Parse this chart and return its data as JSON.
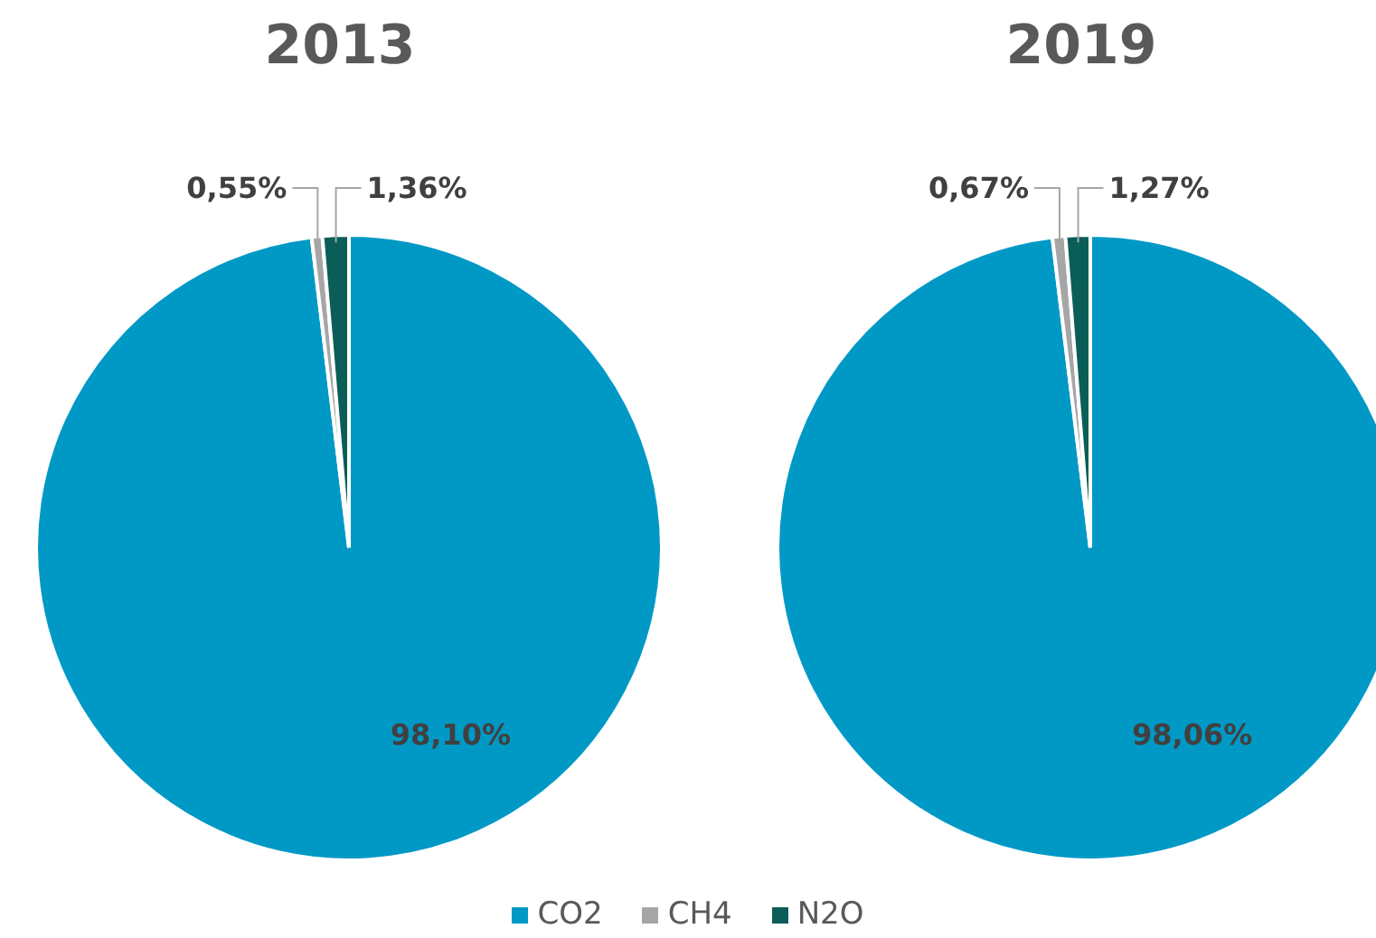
{
  "chart_data": [
    {
      "type": "pie",
      "title": "2013",
      "categories": [
        "CO2",
        "CH4",
        "N2O"
      ],
      "values": [
        98.1,
        0.55,
        1.36
      ],
      "colors": [
        "#0099c6",
        "#a6a6a6",
        "#0b5e57"
      ],
      "value_labels": [
        "98,10%",
        "0,55%",
        "1,36%"
      ],
      "legend": "bottom"
    },
    {
      "type": "pie",
      "title": "2019",
      "categories": [
        null,
        null,
        null
      ],
      "values": [
        98.06,
        0.67,
        1.27
      ],
      "colors": [
        "#0099c6",
        "#a6a6a6",
        "#0b5e57"
      ],
      "value_labels": [
        "98,06%",
        "0,67%",
        "1,27%"
      ]
    }
  ]
}
